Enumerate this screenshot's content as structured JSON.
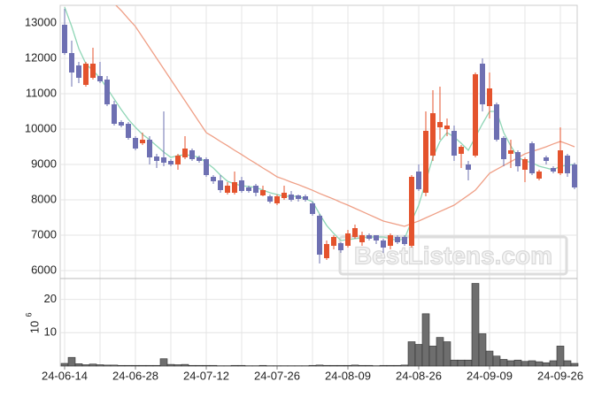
{
  "chart_data": {
    "type": "candlestick",
    "categories": [
      "24-06-14",
      null,
      null,
      null,
      null,
      null,
      null,
      null,
      null,
      null,
      "24-06-28",
      null,
      null,
      null,
      null,
      null,
      null,
      null,
      null,
      null,
      "24-07-12",
      null,
      null,
      null,
      null,
      null,
      null,
      null,
      null,
      null,
      "24-07-26",
      null,
      null,
      null,
      null,
      null,
      null,
      null,
      null,
      null,
      "24-08-09",
      null,
      null,
      null,
      null,
      null,
      null,
      null,
      null,
      null,
      "24-08-26",
      null,
      null,
      null,
      null,
      null,
      null,
      null,
      null,
      null,
      "24-09-09",
      null,
      null,
      null,
      null,
      null,
      null,
      null,
      null,
      null,
      "24-09-26",
      null,
      null
    ],
    "open": [
      12950,
      12150,
      11800,
      11250,
      11450,
      11500,
      11400,
      10700,
      10200,
      10150,
      9750,
      9600,
      9700,
      9225,
      9200,
      9100,
      9000,
      9200,
      9400,
      9200,
      9150,
      8650,
      8550,
      8200,
      8200,
      8550,
      8350,
      8400,
      8125,
      8100,
      7900,
      8050,
      8150,
      8125,
      8100,
      7900,
      7550,
      6350,
      6700,
      6775,
      6700,
      6950,
      6800,
      7000,
      7000,
      6850,
      6700,
      6950,
      6950,
      6700,
      8800,
      8200,
      9250,
      10050,
      10000,
      9950,
      9300,
      9000,
      9250,
      11850,
      10650,
      10700,
      9750,
      9300,
      9350,
      8850,
      9600,
      8600,
      9200,
      8900,
      8750,
      9250,
      9000
    ],
    "high": [
      13400,
      12500,
      11900,
      11900,
      12300,
      11900,
      11500,
      10800,
      10250,
      10200,
      9800,
      9900,
      9800,
      9300,
      10500,
      9150,
      9300,
      9800,
      9450,
      9250,
      9200,
      8700,
      8700,
      8500,
      8800,
      8650,
      8400,
      8450,
      8400,
      8150,
      8150,
      8400,
      8250,
      8150,
      8150,
      7950,
      7600,
      6850,
      7000,
      6800,
      7150,
      7300,
      7100,
      7050,
      7000,
      6900,
      7050,
      7000,
      7000,
      8700,
      9000,
      10500,
      11100,
      11200,
      10300,
      10100,
      9550,
      9100,
      11600,
      12000,
      11600,
      10750,
      9800,
      9700,
      9400,
      9200,
      9650,
      8850,
      9250,
      8950,
      10050,
      9300,
      9050
    ],
    "low": [
      12100,
      11200,
      11300,
      11200,
      11400,
      11300,
      10650,
      10100,
      10050,
      9700,
      9400,
      9550,
      9000,
      8900,
      8950,
      8950,
      8850,
      9150,
      9100,
      9050,
      8650,
      8450,
      8200,
      8150,
      8150,
      8200,
      8200,
      8100,
      8100,
      7900,
      7850,
      8000,
      7950,
      7950,
      7950,
      7550,
      6200,
      6300,
      6600,
      6500,
      6650,
      6900,
      6700,
      6850,
      6750,
      6500,
      6600,
      6750,
      6700,
      6650,
      8250,
      8100,
      9100,
      9700,
      9800,
      9100,
      8900,
      8550,
      9200,
      10500,
      10300,
      9650,
      8950,
      8900,
      8800,
      8500,
      8700,
      8550,
      9000,
      8750,
      8700,
      8650,
      8300
    ],
    "close": [
      12150,
      11600,
      11450,
      11850,
      11850,
      11350,
      10700,
      10150,
      10100,
      9750,
      9450,
      9700,
      9200,
      9100,
      9050,
      9000,
      9250,
      9450,
      9150,
      9100,
      8700,
      8525,
      8275,
      8400,
      8500,
      8250,
      8250,
      8200,
      8275,
      7950,
      8100,
      8200,
      8000,
      8025,
      8000,
      7600,
      6450,
      6750,
      6950,
      6575,
      7050,
      7200,
      7000,
      6900,
      6850,
      6650,
      7000,
      6800,
      6750,
      8650,
      8300,
      9950,
      10450,
      10200,
      10100,
      9250,
      9500,
      8850,
      11550,
      10700,
      11150,
      9700,
      9150,
      9400,
      8950,
      9150,
      8750,
      8800,
      9100,
      8800,
      9400,
      8750,
      8350
    ],
    "ma5": [
      13450,
      12900,
      12275,
      11850,
      11650,
      11450,
      11150,
      10850,
      10550,
      10275,
      10050,
      9850,
      9700,
      9525,
      9350,
      9200,
      9250,
      9275,
      9250,
      9200,
      9050,
      8900,
      8700,
      8525,
      8450,
      8400,
      8375,
      8350,
      8275,
      8200,
      8150,
      8100,
      8100,
      8100,
      8025,
      7950,
      7600,
      7275,
      7050,
      6850,
      6875,
      6900,
      6925,
      6950,
      6950,
      6950,
      6900,
      6850,
      6900,
      7400,
      7850,
      8525,
      9200,
      9650,
      9900,
      9775,
      9600,
      9400,
      9775,
      10150,
      10500,
      10500,
      9900,
      9525,
      9200,
      9100,
      9050,
      8950,
      8900,
      8850,
      8950,
      8975,
      9000
    ],
    "ma20": [
      14900,
      14700,
      14500,
      14320,
      14130,
      13930,
      13740,
      13550,
      13350,
      13120,
      12900,
      12600,
      12300,
      12000,
      11700,
      11400,
      11100,
      10800,
      10500,
      10200,
      9900,
      9780,
      9650,
      9530,
      9400,
      9280,
      9150,
      9030,
      8900,
      8780,
      8650,
      8580,
      8500,
      8430,
      8350,
      8270,
      8180,
      8100,
      8020,
      7930,
      7850,
      7760,
      7670,
      7580,
      7490,
      7400,
      7350,
      7300,
      7250,
      7330,
      7400,
      7490,
      7580,
      7670,
      7760,
      7850,
      7990,
      8130,
      8275,
      8510,
      8750,
      8860,
      8970,
      9080,
      9190,
      9300,
      9370,
      9430,
      9500,
      9580,
      9650,
      9580,
      9500
    ],
    "volume": [
      0.8,
      2.6,
      0.7,
      0.4,
      0.6,
      0.4,
      0.3,
      0.3,
      0.2,
      0.2,
      0.2,
      0.2,
      0.2,
      0.2,
      2.2,
      0.5,
      0.4,
      0.5,
      0.2,
      0.2,
      0.2,
      0.2,
      0.1,
      0.1,
      0.2,
      0.2,
      0.1,
      0.1,
      0.2,
      0.1,
      0.1,
      0.1,
      0.1,
      0.1,
      0.1,
      0.2,
      0.3,
      0.2,
      0.2,
      0.2,
      0.2,
      0.3,
      0.2,
      0.2,
      0.1,
      0.2,
      0.2,
      0.2,
      0.3,
      7.3,
      6.5,
      15.7,
      6.0,
      8.6,
      7.3,
      1.8,
      1.8,
      1.8,
      24.8,
      9.7,
      4.5,
      3.0,
      2.0,
      1.6,
      1.8,
      1.4,
      1.6,
      1.3,
      1.0,
      1.6,
      6.0,
      1.6,
      0.8
    ],
    "ylim": [
      5800,
      13500
    ],
    "yticks": [
      6000,
      7000,
      8000,
      9000,
      10000,
      11000,
      12000,
      13000
    ],
    "y2lim": [
      0,
      26
    ],
    "y2ticks": [
      10,
      20
    ],
    "y2_label": {
      "base": "10",
      "exponent": "6"
    },
    "up_color": "#e4532d",
    "down_color": "#6e70b2",
    "ma5_color": "#8fd6b6",
    "ma20_color": "#ef9f86",
    "volume_color": "#6e6e6e",
    "grid": true,
    "watermark": "BestListens.com"
  }
}
